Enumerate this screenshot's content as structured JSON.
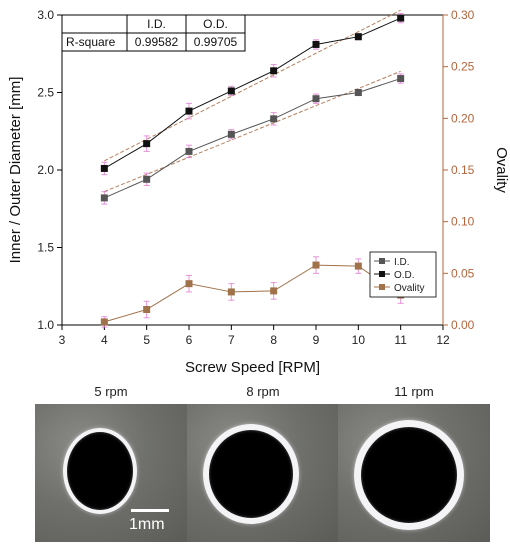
{
  "chart_data": {
    "type": "line",
    "xlabel": "Screw Speed [RPM]",
    "ylabel": "Inner / Outer Diameter [mm]",
    "y2label": "Ovality",
    "xlim": [
      3,
      12
    ],
    "ylim": [
      1.0,
      3.0
    ],
    "y2lim": [
      0.0,
      0.3
    ],
    "x_ticks": [
      "3",
      "4",
      "5",
      "6",
      "7",
      "8",
      "9",
      "10",
      "11",
      "12"
    ],
    "y_ticks": [
      "1.0",
      "1.5",
      "2.0",
      "2.5",
      "3.0"
    ],
    "y2_ticks": [
      "0.00",
      "0.05",
      "0.10",
      "0.15",
      "0.20",
      "0.25",
      "0.30"
    ],
    "x": [
      4,
      5,
      6,
      7,
      8,
      9,
      10,
      11
    ],
    "series": [
      {
        "name": "I.D.",
        "axis": "left",
        "color": "#555555",
        "values": [
          1.82,
          1.94,
          2.12,
          2.23,
          2.33,
          2.46,
          2.5,
          2.59
        ],
        "errors": [
          0.04,
          0.04,
          0.04,
          0.03,
          0.04,
          0.03,
          0.02,
          0.03
        ]
      },
      {
        "name": "O.D.",
        "axis": "left",
        "color": "#111111",
        "values": [
          2.01,
          2.17,
          2.38,
          2.51,
          2.64,
          2.81,
          2.86,
          2.98
        ],
        "errors": [
          0.04,
          0.05,
          0.05,
          0.03,
          0.04,
          0.03,
          0.02,
          0.03
        ]
      },
      {
        "name": "Ovality",
        "axis": "right",
        "color": "#a0724a",
        "values": [
          0.003,
          0.015,
          0.04,
          0.032,
          0.033,
          0.058,
          0.057,
          0.029
        ],
        "errors": [
          0.005,
          0.008,
          0.008,
          0.008,
          0.008,
          0.008,
          0.007,
          0.008
        ]
      }
    ],
    "fit_table": {
      "headers": [
        "",
        "I.D.",
        "O.D."
      ],
      "row_label": "R-square",
      "values": [
        "0.99582",
        "0.99705"
      ]
    },
    "legend_position": "center-right",
    "grid": false
  },
  "colors": {
    "right_axis": "#b4653d",
    "fit_line": "#b5805e",
    "error_bar": "#e07ad0"
  },
  "photos": [
    {
      "label": "5 rpm"
    },
    {
      "label": "8 rpm"
    },
    {
      "label": "11 rpm"
    }
  ],
  "scale_bar_label": "1mm"
}
